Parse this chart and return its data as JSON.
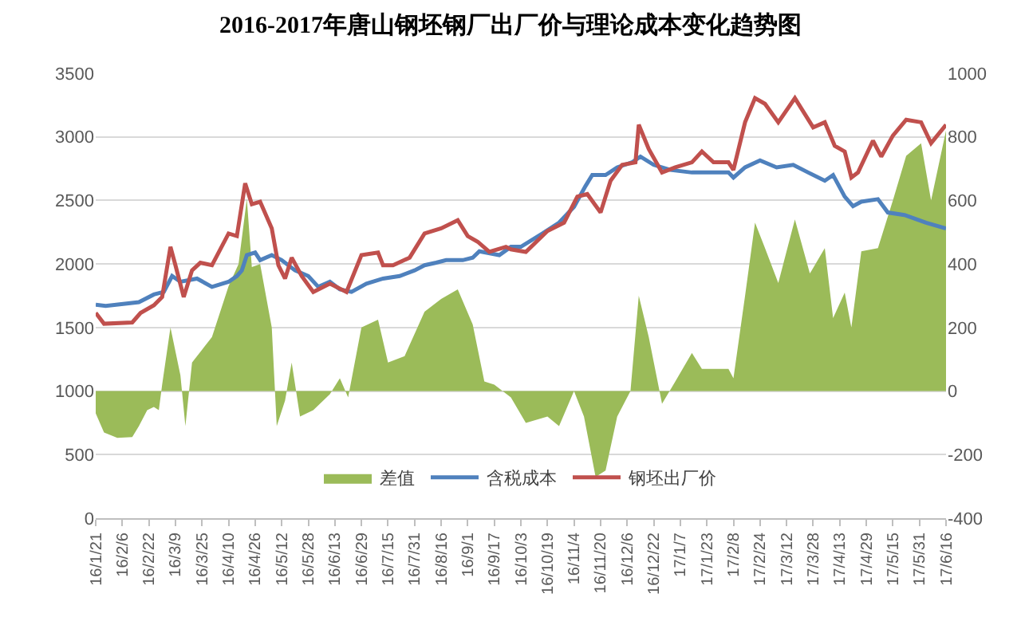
{
  "chart_data": {
    "type": "line",
    "title": "2016-2017年唐山钢坯钢厂出厂价与理论成本变化趋势图",
    "xlim": [
      "2016-01-21",
      "2017-06-16"
    ],
    "xticks": [
      {
        "value": "2016-01-21",
        "label": "16/1/21"
      },
      {
        "value": "2016-02-06",
        "label": "16/2/6"
      },
      {
        "value": "2016-02-22",
        "label": "16/2/22"
      },
      {
        "value": "2016-03-09",
        "label": "16/3/9"
      },
      {
        "value": "2016-03-25",
        "label": "16/3/25"
      },
      {
        "value": "2016-04-10",
        "label": "16/4/10"
      },
      {
        "value": "2016-04-26",
        "label": "16/4/26"
      },
      {
        "value": "2016-05-12",
        "label": "16/5/12"
      },
      {
        "value": "2016-05-28",
        "label": "16/5/28"
      },
      {
        "value": "2016-06-13",
        "label": "16/6/13"
      },
      {
        "value": "2016-06-29",
        "label": "16/6/29"
      },
      {
        "value": "2016-07-15",
        "label": "16/7/15"
      },
      {
        "value": "2016-07-31",
        "label": "16/7/31"
      },
      {
        "value": "2016-08-16",
        "label": "16/8/16"
      },
      {
        "value": "2016-09-01",
        "label": "16/9/1"
      },
      {
        "value": "2016-09-17",
        "label": "16/9/17"
      },
      {
        "value": "2016-10-03",
        "label": "16/10/3"
      },
      {
        "value": "2016-10-19",
        "label": "16/10/19"
      },
      {
        "value": "2016-11-04",
        "label": "16/11/4"
      },
      {
        "value": "2016-11-20",
        "label": "16/11/20"
      },
      {
        "value": "2016-12-06",
        "label": "16/12/6"
      },
      {
        "value": "2016-12-22",
        "label": "16/12/22"
      },
      {
        "value": "2017-01-07",
        "label": "17/1/7"
      },
      {
        "value": "2017-01-23",
        "label": "17/1/23"
      },
      {
        "value": "2017-02-08",
        "label": "17/2/8"
      },
      {
        "value": "2017-02-24",
        "label": "17/2/24"
      },
      {
        "value": "2017-03-12",
        "label": "17/3/12"
      },
      {
        "value": "2017-03-28",
        "label": "17/3/28"
      },
      {
        "value": "2017-04-13",
        "label": "17/4/13"
      },
      {
        "value": "2017-04-29",
        "label": "17/4/29"
      },
      {
        "value": "2017-05-15",
        "label": "17/5/15"
      },
      {
        "value": "2017-05-31",
        "label": "17/5/31"
      },
      {
        "value": "2017-06-16",
        "label": "17/6/16"
      }
    ],
    "ylim": [
      0,
      3500
    ],
    "yticks": [
      0,
      500,
      1000,
      1500,
      2000,
      2500,
      3000,
      3500
    ],
    "y2lim": [
      -400,
      1000
    ],
    "y2ticks": [
      -400,
      -200,
      0,
      200,
      400,
      600,
      800,
      1000
    ],
    "grid": "y",
    "legend": "bottom",
    "marker": "none",
    "line_style": "solid",
    "series": [
      {
        "name": "差值",
        "type": "area",
        "axis": "y2",
        "color": "#9bbb59",
        "x": [
          "2016-01-21",
          "2016-01-26",
          "2016-02-03",
          "2016-02-12",
          "2016-02-16",
          "2016-02-21",
          "2016-02-25",
          "2016-02-28",
          "2016-03-01",
          "2016-03-06",
          "2016-03-12",
          "2016-03-15",
          "2016-03-19",
          "2016-03-31",
          "2016-04-10",
          "2016-04-16",
          "2016-04-21",
          "2016-04-24",
          "2016-04-29",
          "2016-05-06",
          "2016-05-09",
          "2016-05-14",
          "2016-05-18",
          "2016-05-23",
          "2016-05-31",
          "2016-06-10",
          "2016-06-16",
          "2016-06-21",
          "2016-06-29",
          "2016-07-09",
          "2016-07-15",
          "2016-07-25",
          "2016-08-06",
          "2016-08-16",
          "2016-08-26",
          "2016-09-04",
          "2016-09-11",
          "2016-09-17",
          "2016-09-27",
          "2016-10-06",
          "2016-10-19",
          "2016-10-26",
          "2016-11-04",
          "2016-11-10",
          "2016-11-17",
          "2016-11-23",
          "2016-11-30",
          "2016-12-08",
          "2016-12-13",
          "2016-12-19",
          "2016-12-27",
          "2017-01-04",
          "2017-01-14",
          "2017-01-20",
          "2017-02-05",
          "2017-02-08",
          "2017-02-15",
          "2017-02-21",
          "2017-02-27",
          "2017-03-07",
          "2017-03-17",
          "2017-03-26",
          "2017-04-04",
          "2017-04-09",
          "2017-04-16",
          "2017-04-20",
          "2017-04-26",
          "2017-05-06",
          "2017-05-15",
          "2017-05-23",
          "2017-06-01",
          "2017-06-07",
          "2017-06-16"
        ],
        "values": [
          -70,
          -130,
          -147,
          -145,
          -110,
          -60,
          -50,
          -60,
          20,
          200,
          50,
          -110,
          90,
          170,
          330,
          400,
          605,
          390,
          400,
          200,
          -110,
          -30,
          90,
          -80,
          -60,
          -10,
          40,
          -20,
          200,
          225,
          90,
          110,
          250,
          290,
          320,
          210,
          30,
          20,
          -20,
          -100,
          -80,
          -110,
          0,
          -80,
          -270,
          -250,
          -80,
          0,
          300,
          170,
          -40,
          30,
          120,
          70,
          70,
          40,
          300,
          530,
          450,
          340,
          540,
          370,
          450,
          230,
          310,
          200,
          440,
          450,
          600,
          740,
          780,
          600,
          820
        ]
      },
      {
        "name": "含税成本",
        "color": "#4f81bd",
        "x": [
          "2016-01-21",
          "2016-01-27",
          "2016-02-16",
          "2016-02-25",
          "2016-03-02",
          "2016-03-07",
          "2016-03-12",
          "2016-03-22",
          "2016-03-31",
          "2016-04-10",
          "2016-04-15",
          "2016-04-18",
          "2016-04-21",
          "2016-04-26",
          "2016-04-29",
          "2016-05-06",
          "2016-05-12",
          "2016-05-20",
          "2016-05-28",
          "2016-06-03",
          "2016-06-10",
          "2016-06-16",
          "2016-06-23",
          "2016-07-02",
          "2016-07-12",
          "2016-07-22",
          "2016-07-31",
          "2016-08-06",
          "2016-08-13",
          "2016-08-19",
          "2016-08-29",
          "2016-09-04",
          "2016-09-08",
          "2016-09-20",
          "2016-09-27",
          "2016-10-03",
          "2016-10-16",
          "2016-10-26",
          "2016-11-04",
          "2016-11-11",
          "2016-11-15",
          "2016-11-23",
          "2016-11-30",
          "2016-12-09",
          "2016-12-14",
          "2016-12-22",
          "2017-01-01",
          "2017-01-14",
          "2017-02-05",
          "2017-02-08",
          "2017-02-15",
          "2017-02-24",
          "2017-03-06",
          "2017-03-16",
          "2017-03-25",
          "2017-04-04",
          "2017-04-09",
          "2017-04-16",
          "2017-04-21",
          "2017-04-26",
          "2017-05-06",
          "2017-05-12",
          "2017-05-22",
          "2017-06-04",
          "2017-06-16"
        ],
        "values": [
          1680,
          1670,
          1700,
          1760,
          1780,
          1905,
          1860,
          1885,
          1820,
          1860,
          1905,
          1950,
          2070,
          2090,
          2030,
          2070,
          2030,
          1950,
          1905,
          1820,
          1860,
          1800,
          1780,
          1845,
          1885,
          1905,
          1950,
          1990,
          2010,
          2030,
          2030,
          2050,
          2100,
          2070,
          2135,
          2135,
          2240,
          2325,
          2450,
          2615,
          2700,
          2700,
          2760,
          2800,
          2845,
          2780,
          2740,
          2720,
          2720,
          2680,
          2760,
          2815,
          2760,
          2780,
          2720,
          2655,
          2700,
          2530,
          2455,
          2490,
          2510,
          2405,
          2385,
          2325,
          2280
        ]
      },
      {
        "name": "钢坯出厂价",
        "color": "#c0504d",
        "x": [
          "2016-01-21",
          "2016-01-26",
          "2016-02-12",
          "2016-02-17",
          "2016-02-25",
          "2016-03-01",
          "2016-03-06",
          "2016-03-09",
          "2016-03-14",
          "2016-03-19",
          "2016-03-24",
          "2016-03-31",
          "2016-04-10",
          "2016-04-15",
          "2016-04-20",
          "2016-04-24",
          "2016-04-29",
          "2016-05-06",
          "2016-05-10",
          "2016-05-14",
          "2016-05-18",
          "2016-05-24",
          "2016-05-31",
          "2016-06-10",
          "2016-06-20",
          "2016-06-29",
          "2016-07-09",
          "2016-07-12",
          "2016-07-18",
          "2016-07-28",
          "2016-08-06",
          "2016-08-16",
          "2016-08-26",
          "2016-09-01",
          "2016-09-07",
          "2016-09-14",
          "2016-09-24",
          "2016-09-27",
          "2016-10-06",
          "2016-10-19",
          "2016-10-29",
          "2016-11-06",
          "2016-11-12",
          "2016-11-20",
          "2016-11-26",
          "2016-12-03",
          "2016-12-11",
          "2016-12-13",
          "2016-12-19",
          "2016-12-27",
          "2017-01-04",
          "2017-01-14",
          "2017-01-20",
          "2017-01-27",
          "2017-02-05",
          "2017-02-08",
          "2017-02-15",
          "2017-02-21",
          "2017-02-27",
          "2017-03-07",
          "2017-03-17",
          "2017-03-28",
          "2017-04-04",
          "2017-04-10",
          "2017-04-16",
          "2017-04-20",
          "2017-04-24",
          "2017-05-03",
          "2017-05-08",
          "2017-05-15",
          "2017-05-23",
          "2017-06-01",
          "2017-06-07",
          "2017-06-16"
        ],
        "values": [
          1615,
          1530,
          1540,
          1615,
          1675,
          1740,
          2135,
          1990,
          1740,
          1950,
          2010,
          1990,
          2240,
          2220,
          2635,
          2470,
          2490,
          2280,
          1990,
          1885,
          2050,
          1905,
          1780,
          1845,
          1780,
          2070,
          2090,
          1990,
          1990,
          2050,
          2240,
          2280,
          2345,
          2220,
          2175,
          2095,
          2135,
          2115,
          2095,
          2260,
          2325,
          2530,
          2550,
          2405,
          2655,
          2780,
          2800,
          3095,
          2905,
          2720,
          2760,
          2800,
          2885,
          2800,
          2800,
          2740,
          3115,
          3305,
          3260,
          3115,
          3305,
          3075,
          3115,
          2930,
          2885,
          2680,
          2720,
          2970,
          2845,
          3010,
          3135,
          3115,
          2950,
          3095
        ]
      }
    ]
  }
}
